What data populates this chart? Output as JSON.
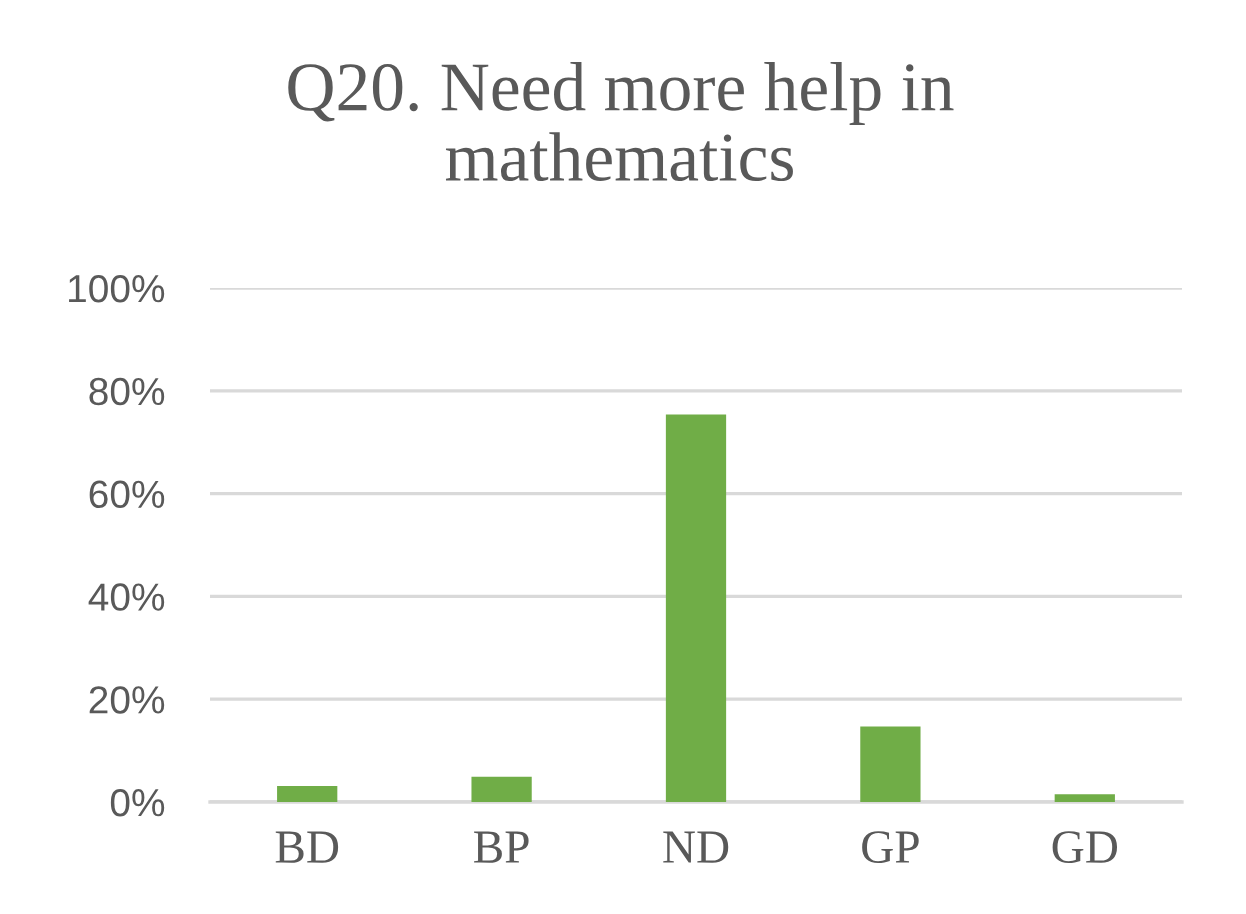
{
  "chart_data": {
    "type": "bar",
    "title": "Q20. Need more help in mathematics",
    "categories": [
      "BD",
      "BP",
      "ND",
      "GP",
      "GD"
    ],
    "values": [
      3.1,
      4.9,
      75.4,
      14.7,
      1.5
    ],
    "color": "#70ad47",
    "ylim": [
      0,
      100
    ],
    "yticks": [
      {
        "value": 0,
        "label": "0%"
      },
      {
        "value": 20,
        "label": "20%"
      },
      {
        "value": 40,
        "label": "40%"
      },
      {
        "value": 60,
        "label": "60%"
      },
      {
        "value": 80,
        "label": "80%"
      },
      {
        "value": 100,
        "label": "100%"
      }
    ],
    "grid": "y"
  }
}
